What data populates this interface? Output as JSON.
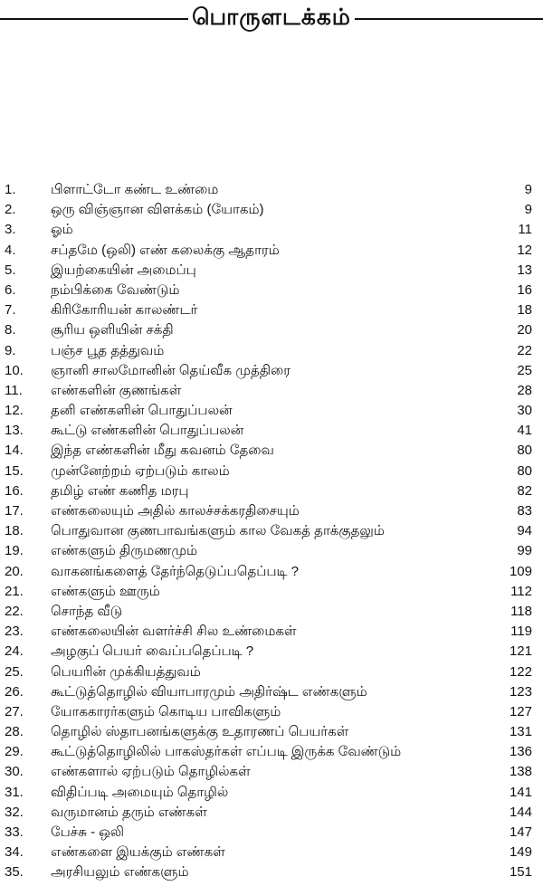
{
  "header": {
    "title": "பொருளடக்கம்"
  },
  "entries": [
    {
      "num": "1.",
      "title": "பிளாட்டோ கண்ட உண்மை",
      "page": "9"
    },
    {
      "num": "2.",
      "title": "ஒரு விஞ்ஞான விளக்கம் (யோகம்)",
      "page": "9"
    },
    {
      "num": "3.",
      "title": "ஓம்",
      "page": "11"
    },
    {
      "num": "4.",
      "title": "சப்தமே (ஒலி) எண் கலைக்கு ஆதாரம்",
      "page": "12"
    },
    {
      "num": "5.",
      "title": "இயற்கையின் அமைப்பு",
      "page": "13"
    },
    {
      "num": "6.",
      "title": "நம்பிக்கை வேண்டும்",
      "page": "16"
    },
    {
      "num": "7.",
      "title": "கிரிகோரியன் காலண்டர்",
      "page": "18"
    },
    {
      "num": "8.",
      "title": "சூரிய ஒளியின் சக்தி",
      "page": "20"
    },
    {
      "num": "9.",
      "title": "பஞ்ச பூத தத்துவம்",
      "page": "22"
    },
    {
      "num": "10.",
      "title": "ஞானி சாலமோனின் தெய்வீக முத்திரை",
      "page": "25"
    },
    {
      "num": "11.",
      "title": "எண்களின் குணங்கள்",
      "page": "28"
    },
    {
      "num": "12.",
      "title": "தனி எண்களின் பொதுப்பலன்",
      "page": "30"
    },
    {
      "num": "13.",
      "title": "கூட்டு எண்களின் பொதுப்பலன்",
      "page": "41"
    },
    {
      "num": "14.",
      "title": "இந்த எண்களின் மீது கவனம் தேவை",
      "page": "80"
    },
    {
      "num": "15.",
      "title": "முன்னேற்றம் ஏற்படும் காலம்",
      "page": "80"
    },
    {
      "num": "16.",
      "title": "தமிழ் எண் கணித மரபு",
      "page": "82"
    },
    {
      "num": "17.",
      "title": "எண்கலையும் அதில் காலச்சக்கரதிசையும்",
      "page": "83"
    },
    {
      "num": "18.",
      "title": "பொதுவான குணபாவங்களும் கால வேகத் தாக்குதலும்",
      "page": "94"
    },
    {
      "num": "19.",
      "title": "எண்களும் திருமணமும்",
      "page": "99"
    },
    {
      "num": "20.",
      "title": "வாகனங்களைத் தேர்ந்தெடுப்பதெப்படி ?",
      "page": "109"
    },
    {
      "num": "21.",
      "title": "எண்களும் ஊரும்",
      "page": "112"
    },
    {
      "num": "22.",
      "title": "சொந்த வீடு",
      "page": "118"
    },
    {
      "num": "23.",
      "title": "எண்கலையின் வளர்ச்சி சில உண்மைகள்",
      "page": "119"
    },
    {
      "num": "24.",
      "title": "அழகுப் பெயர் வைப்பதெப்படி ?",
      "page": "121"
    },
    {
      "num": "25.",
      "title": "பெயரின் முக்கியத்துவம்",
      "page": "122"
    },
    {
      "num": "26.",
      "title": "கூட்டுத்தொழில் வியாபாரமும் அதிர்ஷ்ட எண்களும்",
      "page": "123"
    },
    {
      "num": "27.",
      "title": "யோககாரர்களும் கொடிய பாவிகளும்",
      "page": "127"
    },
    {
      "num": "28.",
      "title": "தொழில் ஸ்தாபனங்களுக்கு உதாரணப் பெயர்கள்",
      "page": "131"
    },
    {
      "num": "29.",
      "title": "கூட்டுத்தொழிலில் பாகஸ்தர்கள் எப்படி இருக்க வேண்டும்",
      "page": "136"
    },
    {
      "num": "30.",
      "title": "எண்களால் ஏற்படும் தொழில்கள்",
      "page": "138"
    },
    {
      "num": "31.",
      "title": "விதிப்படி அமையும் தொழில்",
      "page": "141"
    },
    {
      "num": "32.",
      "title": "வருமானம் தரும் எண்கள்",
      "page": "144"
    },
    {
      "num": "33.",
      "title": "பேச்சு - ஒலி",
      "page": "147"
    },
    {
      "num": "34.",
      "title": "எண்களை இயக்கும் எண்கள்",
      "page": "149"
    },
    {
      "num": "35.",
      "title": "அரசியலும் எண்களும்",
      "page": "151"
    }
  ]
}
